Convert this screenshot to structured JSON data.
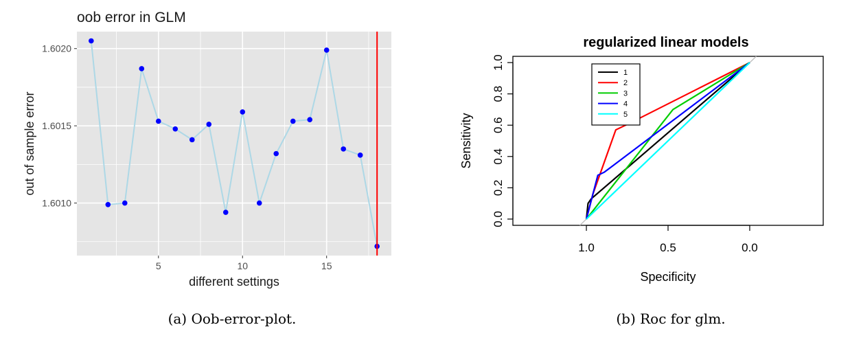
{
  "chart_data": [
    {
      "type": "scatter",
      "title": "oob error in GLM",
      "xlabel": "different settings",
      "ylabel": "out of sample error",
      "x": [
        1,
        2,
        3,
        4,
        5,
        6,
        7,
        8,
        9,
        10,
        11,
        12,
        13,
        14,
        15,
        16,
        17,
        18
      ],
      "y": [
        1.60205,
        1.60099,
        1.601,
        1.60187,
        1.60153,
        1.60148,
        1.60141,
        1.60151,
        1.60094,
        1.60159,
        1.601,
        1.60132,
        1.60153,
        1.60154,
        1.60199,
        1.60135,
        1.60131,
        1.60072
      ],
      "xlim": [
        0.15,
        18.85
      ],
      "ylim": [
        1.60066,
        1.60211
      ],
      "x_ticks": [
        5,
        10,
        15
      ],
      "x_tick_labels": [
        "5",
        "10",
        "15"
      ],
      "y_ticks": [
        1.601,
        1.6015,
        1.602
      ],
      "y_tick_labels": [
        "1.6010",
        "1.6015",
        "1.6020"
      ],
      "vline_x": 18,
      "grid": true,
      "colors": {
        "panel": "#e5e5e5",
        "grid": "#ffffff",
        "line": "#add8e6",
        "point": "#0000ff",
        "vline": "#ff0000"
      },
      "caption": "(a) Oob-error-plot."
    },
    {
      "type": "line",
      "title": "regularized linear models",
      "xlabel": "Specificity",
      "ylabel": "Sensitivity",
      "xlim": [
        1.45,
        -0.45
      ],
      "ylim": [
        -0.04,
        1.04
      ],
      "x_ticks": [
        1.0,
        0.5,
        0.0
      ],
      "x_tick_labels": [
        "1.0",
        "0.5",
        "0.0"
      ],
      "y_ticks": [
        0.0,
        0.2,
        0.4,
        0.6,
        0.8,
        1.0
      ],
      "y_tick_labels": [
        "0.0",
        "0.2",
        "0.4",
        "0.6",
        "0.8",
        "1.0"
      ],
      "legend_position": "top-left",
      "series": [
        {
          "name": "1",
          "color": "#000000",
          "points": [
            [
              1.0,
              0.0
            ],
            [
              0.99,
              0.1
            ],
            [
              0.97,
              0.13
            ],
            [
              0.0,
              1.0
            ]
          ]
        },
        {
          "name": "2",
          "color": "#ff0000",
          "points": [
            [
              1.0,
              0.0
            ],
            [
              0.96,
              0.16
            ],
            [
              0.82,
              0.57
            ],
            [
              0.74,
              0.61
            ],
            [
              0.0,
              1.0
            ]
          ]
        },
        {
          "name": "3",
          "color": "#00cd00",
          "points": [
            [
              1.0,
              0.0
            ],
            [
              0.47,
              0.7
            ],
            [
              0.0,
              1.0
            ]
          ]
        },
        {
          "name": "4",
          "color": "#0000ff",
          "points": [
            [
              1.0,
              0.0
            ],
            [
              0.93,
              0.28
            ],
            [
              0.89,
              0.3
            ],
            [
              0.0,
              1.0
            ]
          ]
        },
        {
          "name": "5",
          "color": "#00ffff",
          "points": [
            [
              1.0,
              0.0
            ],
            [
              0.0,
              1.0
            ]
          ]
        }
      ],
      "diagonal_color": "#bebebe",
      "caption": "(b) Roc for glm."
    }
  ]
}
